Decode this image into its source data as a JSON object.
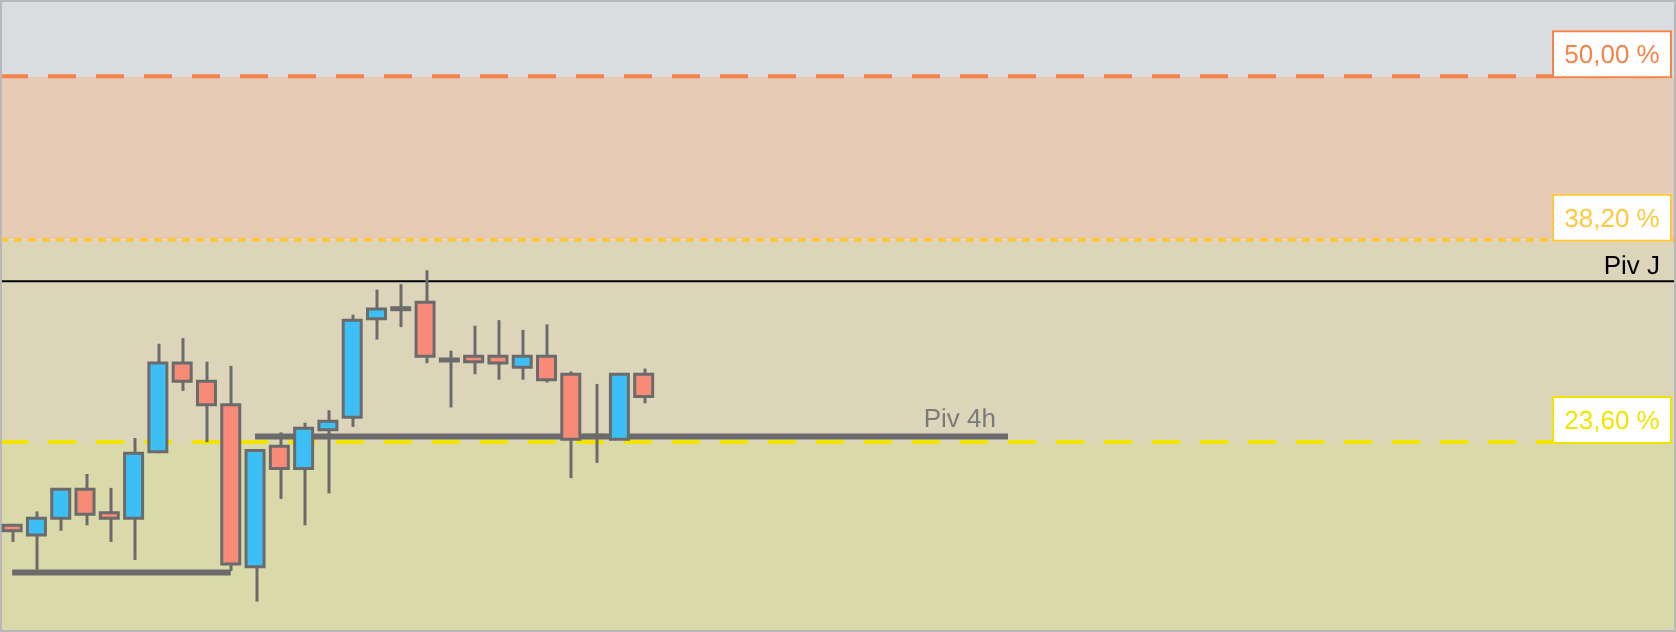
{
  "chart_data": {
    "type": "candlestick",
    "categories": [
      null,
      null,
      null,
      null,
      null,
      null,
      null,
      null,
      null,
      null,
      null,
      null,
      null,
      null,
      null,
      null,
      null,
      null,
      null,
      null,
      null,
      null,
      null,
      null,
      null,
      null,
      null,
      null,
      null,
      null,
      null,
      null,
      null,
      null,
      null,
      null,
      null,
      null,
      null,
      null,
      null,
      null,
      null,
      null,
      null,
      null,
      null,
      null,
      null,
      null,
      null,
      null,
      null,
      null,
      null,
      null,
      null,
      null,
      null,
      null,
      null,
      null,
      null,
      null,
      null,
      null,
      null,
      null,
      null
    ],
    "ohlc": [
      [
        17.6,
        17.7,
        16.4,
        17.2
      ],
      [
        16.9,
        18.6,
        14.4,
        18.1
      ],
      [
        18.1,
        20.3,
        17.2,
        20.2
      ],
      [
        20.2,
        21.3,
        17.6,
        18.4
      ],
      [
        18.5,
        20.3,
        16.4,
        18.1
      ],
      [
        18.1,
        23.9,
        15.1,
        22.8
      ],
      [
        22.9,
        30.7,
        22.8,
        29.3
      ],
      [
        29.3,
        31.1,
        27.3,
        28.0
      ],
      [
        28.0,
        29.4,
        23.6,
        26.3
      ],
      [
        26.3,
        29.1,
        14.3,
        14.8
      ],
      [
        14.6,
        23.0,
        12.1,
        23.0
      ],
      [
        23.3,
        24.3,
        19.5,
        21.7
      ],
      [
        21.7,
        25.0,
        17.6,
        24.6
      ],
      [
        24.5,
        25.9,
        19.9,
        25.1
      ],
      [
        25.4,
        32.8,
        24.7,
        32.4
      ],
      [
        32.5,
        34.6,
        31.0,
        33.2
      ],
      [
        33.2,
        35.0,
        31.9,
        33.3
      ],
      [
        33.7,
        36.0,
        29.3,
        29.8
      ],
      [
        29.5,
        30.2,
        26.1,
        29.6
      ],
      [
        29.8,
        32.0,
        28.5,
        29.4
      ],
      [
        29.8,
        32.4,
        28.1,
        29.3
      ],
      [
        29.0,
        31.7,
        28.1,
        29.8
      ],
      [
        29.8,
        32.1,
        27.9,
        28.1
      ],
      [
        28.5,
        28.7,
        21.0,
        23.8
      ],
      [
        24.0,
        27.8,
        22.1,
        24.1
      ],
      [
        23.8,
        28.5,
        23.8,
        28.5
      ],
      [
        28.5,
        28.9,
        26.4,
        26.9
      ],
      null,
      null,
      null,
      null,
      null,
      null,
      null,
      null,
      null,
      null,
      null,
      null,
      null,
      null,
      null,
      null,
      null,
      null,
      null,
      null,
      null,
      null,
      null,
      null,
      null,
      null,
      null,
      null,
      null,
      null,
      null,
      null,
      null,
      null,
      null,
      null,
      null,
      null,
      null,
      null,
      null,
      null
    ],
    "colors": [
      "#f88a78",
      "#3cbff5",
      "#3cbff5",
      "#f88a78",
      "#f88a78",
      "#3cbff5",
      "#3cbff5",
      "#f88a78",
      "#f88a78",
      "#f88a78",
      "#3cbff5",
      "#f88a78",
      "#3cbff5",
      "#3cbff5",
      "#3cbff5",
      "#3cbff5",
      "#3cbff5",
      "#f88a78",
      "#3cbff5",
      "#f88a78",
      "#f88a78",
      "#3cbff5",
      "#f88a78",
      "#f88a78",
      "#3cbff5",
      "#3cbff5",
      "#f88a78",
      null,
      null,
      null,
      null,
      null,
      null,
      null,
      null,
      null,
      null,
      null,
      null,
      null,
      null,
      null,
      null,
      null,
      null,
      null,
      null,
      null,
      null,
      null,
      null,
      null,
      null,
      null,
      null,
      null,
      null,
      null,
      null,
      null,
      null,
      null,
      null,
      null,
      null,
      null,
      null,
      null,
      null
    ],
    "series": [
      {
        "type": "line",
        "name": "Piv 4h",
        "color": "#6b6b6b",
        "values": [
          null,
          null,
          null,
          null,
          null,
          null,
          null,
          null,
          null,
          null,
          24.0,
          24.0,
          24.0,
          24.0,
          24.0,
          24.0,
          24.0,
          24.0,
          24.0,
          24.0,
          24.0,
          24.0,
          24.0,
          24.0,
          24.0,
          24.0,
          24.0,
          24.0,
          24.0,
          24.0,
          24.0,
          24.0,
          24.0,
          24.0,
          24.0,
          24.0,
          24.0,
          24.0,
          24.0,
          24.0,
          24.0,
          24.0,
          null,
          null,
          null,
          null,
          null,
          null,
          null,
          null,
          null,
          null,
          null,
          null,
          null,
          null,
          null,
          null,
          null,
          null,
          null,
          null,
          null,
          null,
          null,
          null,
          null,
          null,
          null
        ]
      },
      {
        "type": "line",
        "color": "#6b6b6b",
        "values": [
          14.2,
          14.2,
          14.2,
          14.2,
          14.2,
          14.2,
          14.2,
          14.2,
          14.2,
          14.2,
          null,
          null,
          null,
          null,
          null,
          null,
          null,
          null,
          null,
          null,
          null,
          null,
          null,
          null,
          null,
          null,
          null,
          null,
          null,
          null,
          null,
          null,
          null,
          null,
          null,
          null,
          null,
          null,
          null,
          null,
          null,
          null,
          null,
          null,
          null,
          null,
          null,
          null,
          null,
          null,
          null,
          null,
          null,
          null,
          null,
          null,
          null,
          null,
          null,
          null,
          null,
          null,
          null,
          null,
          null,
          null,
          null,
          null,
          null
        ]
      }
    ],
    "ylim": [
      9.9,
      55.5
    ],
    "yticks": [
      {
        "value": 23.6,
        "label": "23,60 %"
      },
      {
        "value": 38.2,
        "label": "38,20 %"
      },
      {
        "value": 50,
        "label": "50,00 %"
      }
    ],
    "tick_labels": "y",
    "ref_lines": [
      {
        "axis": "y",
        "value": 50,
        "color": "#f5844a",
        "line_style": "dashed"
      },
      {
        "axis": "y",
        "value": 38.2,
        "color": "#ffc83c",
        "line_style": "dotted"
      },
      {
        "axis": "y",
        "value": 23.6,
        "color": "#f2e400",
        "line_style": "dashed"
      },
      {
        "axis": "y",
        "value": 35.2,
        "label": "Piv J",
        "color": "#000000",
        "line_style": "solid"
      }
    ],
    "bands": [
      {
        "axis": "y",
        "from": 50,
        "to": 55.5,
        "color": "#dadde0"
      },
      {
        "axis": "y",
        "from": 38.2,
        "to": 50,
        "color": "#e6cbb6"
      },
      {
        "axis": "y",
        "from": 23.6,
        "to": 38.2,
        "color": "#ddd5b9"
      },
      {
        "axis": "y",
        "from": 9.9,
        "to": 23.6,
        "color": "#dad9aa"
      }
    ]
  }
}
